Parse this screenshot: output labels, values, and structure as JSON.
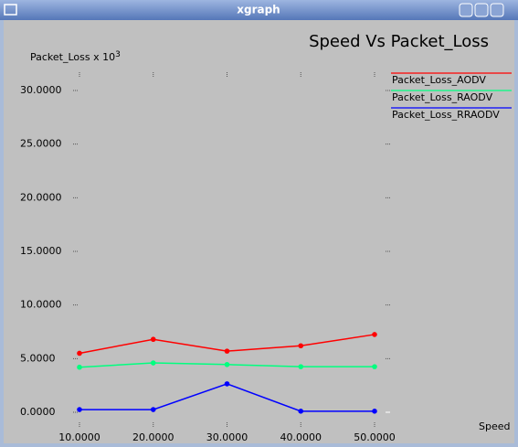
{
  "window_title": "xgraph",
  "chart_data": {
    "type": "line",
    "title": "Speed Vs Packet_Loss",
    "y_label": "Packet_Loss x 10",
    "y_label_superscript": "3",
    "x_label": "Speed",
    "x": [
      10,
      20,
      30,
      40,
      50
    ],
    "series": [
      {
        "name": "Packet_Loss_AODV",
        "color": "#ff0000",
        "values": [
          5.5,
          6.8,
          5.7,
          6.2,
          7.25
        ]
      },
      {
        "name": "Packet_Loss_RAODV",
        "color": "#00ff7f",
        "values": [
          4.2,
          4.6,
          4.45,
          4.25,
          4.25
        ]
      },
      {
        "name": "Packet_Loss_RRAODV",
        "color": "#0000ff",
        "values": [
          0.25,
          0.25,
          2.65,
          0.1,
          0.1
        ]
      }
    ],
    "xlim": [
      10,
      50
    ],
    "ylim": [
      0,
      30
    ],
    "xticks": [
      {
        "value": 10,
        "label": "10.0000"
      },
      {
        "value": 20,
        "label": "20.0000"
      },
      {
        "value": 30,
        "label": "30.0000"
      },
      {
        "value": 40,
        "label": "40.0000"
      },
      {
        "value": 50,
        "label": "50.0000"
      }
    ],
    "yticks": [
      {
        "value": 0,
        "label": "0.0000"
      },
      {
        "value": 5,
        "label": "5.0000"
      },
      {
        "value": 10,
        "label": "10.0000"
      },
      {
        "value": 15,
        "label": "15.0000"
      },
      {
        "value": 20,
        "label": "20.0000"
      },
      {
        "value": 25,
        "label": "25.0000"
      },
      {
        "value": 30,
        "label": "30.0000"
      }
    ],
    "legend": "top-right"
  }
}
